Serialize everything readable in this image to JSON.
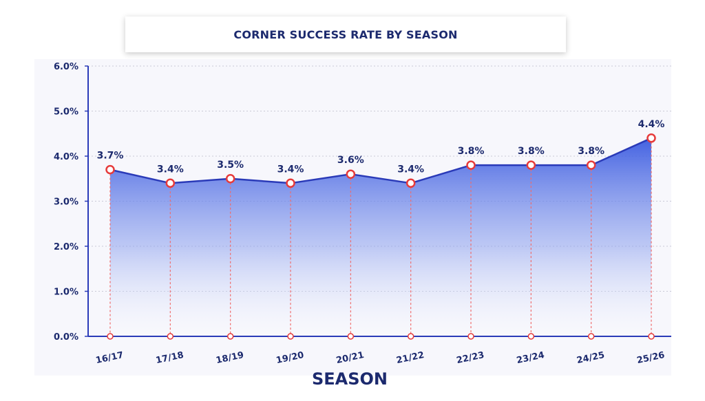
{
  "chart_data": {
    "type": "area",
    "title": "CORNER SUCCESS RATE BY SEASON",
    "xlabel": "SEASON",
    "ylabel": "",
    "categories": [
      "16/17",
      "17/18",
      "18/19",
      "19/20",
      "20/21",
      "21/22",
      "22/23",
      "23/24",
      "24/25",
      "25/26"
    ],
    "series": [
      {
        "values": [
          3.7,
          3.4,
          3.5,
          3.4,
          3.6,
          3.4,
          3.8,
          3.8,
          3.8,
          4.4
        ],
        "data_labels": [
          "3.7%",
          "3.4%",
          "3.5%",
          "3.4%",
          "3.6%",
          "3.4%",
          "3.8%",
          "3.8%",
          "3.8%",
          "4.4%"
        ]
      }
    ],
    "ylim": [
      0,
      6
    ],
    "yticks": [
      "0.0%",
      "1.0%",
      "2.0%",
      "3.0%",
      "4.0%",
      "5.0%",
      "6.0%"
    ],
    "grid": true,
    "colors": {
      "line": "#2a3ab8",
      "fill_top": "#3a5ae0",
      "marker_edge": "#e63b3b",
      "drop_line": "#ef6b6b",
      "text": "#1c2a6e"
    }
  }
}
